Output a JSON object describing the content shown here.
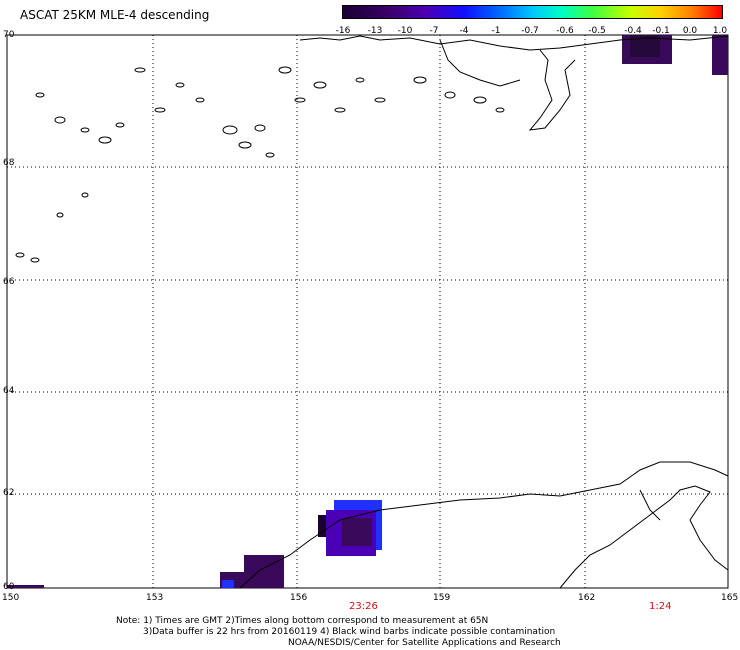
{
  "title": "ASCAT 25KM MLE-4 descending",
  "colorbar": {
    "labels": [
      "-16",
      "-13",
      "-10",
      "-7",
      "-4",
      "-1",
      "-0.7",
      "-0.6",
      "-0.5",
      "-0.4",
      "-0.1",
      "0.0",
      "1.0"
    ]
  },
  "axes": {
    "lon_labels": [
      "150",
      "153",
      "156",
      "159",
      "162",
      "165"
    ],
    "lat_labels": [
      "70",
      "68",
      "66",
      "64",
      "62",
      "60"
    ]
  },
  "times": [
    "23:26",
    "1:24"
  ],
  "notes": {
    "line1": "Note: 1) Times are GMT 2)Times along bottom correspond to measurement at 65N",
    "line2": "3)Data buffer is 22 hrs from 20160119 4) Black wind barbs indicate possible contamination",
    "line3": "NOAA/NESDIS/Center for Satellite Applications and Research"
  },
  "colors": {
    "grid": "#000000",
    "coast": "#000000",
    "data_dark": "#3a0a5a",
    "data_purple": "#4b00b4",
    "data_blue": "#2030ff",
    "time_label": "#d01010"
  }
}
